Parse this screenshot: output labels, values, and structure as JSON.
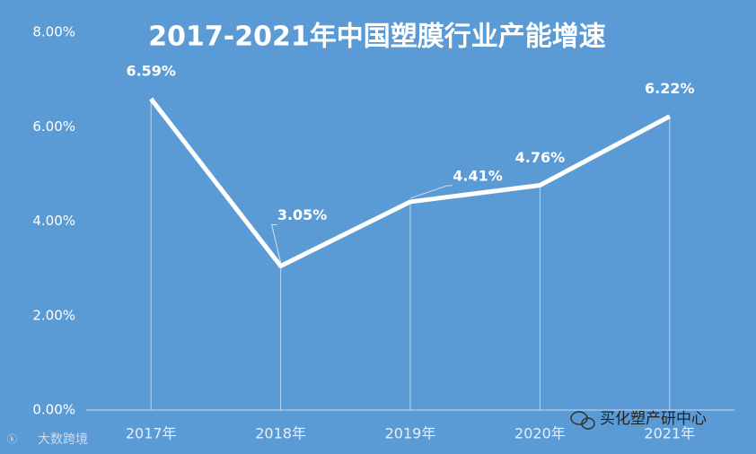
{
  "chart_data": {
    "type": "line",
    "title": "2017-2021年中国塑膜行业产能增速",
    "categories": [
      "2017年",
      "2018年",
      "2019年",
      "2020年",
      "2021年"
    ],
    "values": [
      6.59,
      3.05,
      4.41,
      4.76,
      6.22
    ],
    "value_labels": [
      "6.59%",
      "3.05%",
      "4.41%",
      "4.76%",
      "6.22%"
    ],
    "color": "#ffffff",
    "ylim": [
      0,
      8
    ],
    "yticks": [
      {
        "value": 0,
        "label": "0.00%"
      },
      {
        "value": 2,
        "label": "2.00%"
      },
      {
        "value": 4,
        "label": "4.00%"
      },
      {
        "value": 6,
        "label": "6.00%"
      },
      {
        "value": 8,
        "label": "8.00%"
      }
    ],
    "drop_lines": true
  },
  "watermarks": [
    "买化塑产研中心",
    "大数跨境"
  ]
}
